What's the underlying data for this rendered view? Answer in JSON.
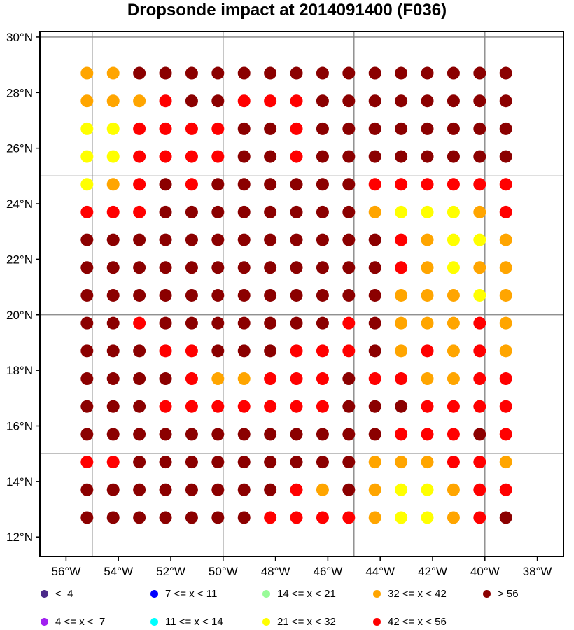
{
  "title": "Dropsonde impact at 2014091400 (F036)",
  "map": {
    "lon_range": [
      -57,
      -37
    ],
    "lat_range": [
      11.3,
      30.2
    ],
    "lon_ticks": [
      -56,
      -54,
      -52,
      -50,
      -48,
      -46,
      -44,
      -42,
      -40,
      -38
    ],
    "lon_tick_labels": [
      "56°W",
      "54°W",
      "52°W",
      "50°W",
      "48°W",
      "46°W",
      "44°W",
      "42°W",
      "40°W",
      "38°W"
    ],
    "lat_ticks": [
      12,
      14,
      16,
      18,
      20,
      22,
      24,
      26,
      28,
      30
    ],
    "lat_tick_labels": [
      "12°N",
      "14°N",
      "16°N",
      "18°N",
      "20°N",
      "22°N",
      "24°N",
      "26°N",
      "28°N",
      "30°N"
    ],
    "grid_lons": [
      -55,
      -50,
      -45,
      -40
    ],
    "grid_lats": [
      15,
      20,
      25,
      30
    ],
    "grid_color": "#808080"
  },
  "chart_data": {
    "type": "scatter",
    "title": "Dropsonde impact at 2014091400 (F036)",
    "lons": [
      -55.2,
      -54.2,
      -53.2,
      -52.2,
      -51.2,
      -50.2,
      -49.2,
      -48.2,
      -47.2,
      -46.2,
      -45.2,
      -44.2,
      -43.2,
      -42.2,
      -41.2,
      -40.2,
      -39.2
    ],
    "lats": [
      28.7,
      27.7,
      26.7,
      25.7,
      24.7,
      23.7,
      22.7,
      21.7,
      20.7,
      19.7,
      18.7,
      17.7,
      16.7,
      15.7,
      14.7,
      13.7,
      12.7
    ],
    "categories": [
      "< 4",
      "4 <= x < 7",
      "7 <= x < 11",
      "11 <= x < 14",
      "14 <= x < 21",
      "21 <= x < 32",
      "32 <= x < 42",
      "42 <= x < 56",
      "> 56"
    ],
    "category_codes": {
      "O": "32 <= x < 42",
      "Y": "21 <= x < 32",
      "R": "42 <= x < 56",
      "D": "> 56"
    },
    "grid": [
      "OODDDDDDDDDDDDDDD",
      "OOORDDRRRDDDDDDDD",
      "YYRRRRDDRDDDDDDDD",
      "YYRRRRDDRDDDDDDDD",
      "YORDRDDDDDDRRRRRR",
      "RRRDDDDDDDDOYYYOR",
      "DDDDDDDDDDDDROYYO",
      "DDDDDDDDDDDDROYOO",
      "DDDDDDDDDDDDOOOYO",
      "DDRDDDDDDDRDOOORO",
      "DDDRRDDDRRRDORORO",
      "DDDDROORRRDRROORR",
      "DDDRRRRRRRDDDRRRR",
      "DDDDDDDDDDDDRRRDR",
      "RRDDDDDDDDDOOORRO",
      "DDDDDDDDRODOYYORR",
      "DDDDDDDRRRROYYORD"
    ]
  },
  "legend": {
    "items": [
      {
        "label": "<  4",
        "color": "#4b2a8a"
      },
      {
        "label": "4 <= x <  7",
        "color": "#a020f0"
      },
      {
        "label": "7 <= x < 11",
        "color": "#0000ff"
      },
      {
        "label": "11 <= x < 14",
        "color": "#00ffff"
      },
      {
        "label": "14 <= x < 21",
        "color": "#98fb98"
      },
      {
        "label": "21 <= x < 32",
        "color": "#ffff00"
      },
      {
        "label": "32 <= x < 42",
        "color": "#ffa500"
      },
      {
        "label": "42 <= x < 56",
        "color": "#ff0000"
      },
      {
        "label": "> 56",
        "color": "#8b0000"
      }
    ],
    "code_colors": {
      "O": "#ffa500",
      "Y": "#ffff00",
      "R": "#ff0000",
      "D": "#8b0000"
    }
  }
}
